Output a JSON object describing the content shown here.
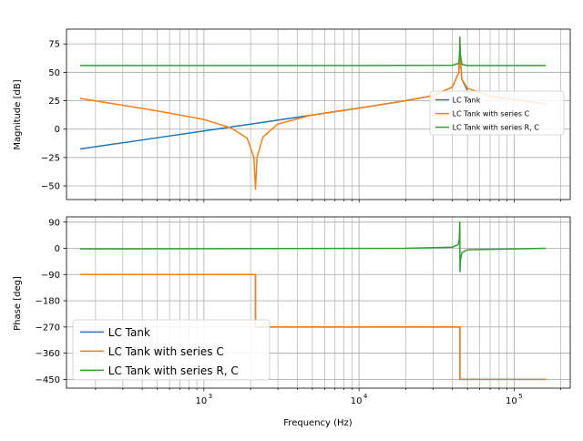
{
  "chart_data": [
    {
      "type": "line",
      "panel": "magnitude",
      "ylabel": "Magnitude [dB]",
      "xscale": "log",
      "xlim": [
        130,
        230000
      ],
      "ylim": [
        -62,
        88
      ],
      "yticks": [
        -50,
        -25,
        0,
        25,
        50,
        75
      ],
      "grid": "both (major and minor)",
      "legend_position": "right",
      "legend_entries": [
        "LC Tank",
        "LC Tank with series C",
        "LC Tank with series R, C"
      ],
      "series": [
        {
          "name": "LC Tank",
          "color": "#1f77b4",
          "x": [
            159,
            500,
            1000,
            2000,
            5000,
            10000,
            20000,
            30000,
            40000,
            44000,
            44700,
            45000,
            46000,
            50000
          ],
          "y": [
            -17.5,
            -7.6,
            -1.6,
            4.4,
            12.4,
            18.5,
            25.0,
            29.4,
            37.0,
            50.0,
            72.0,
            60.0,
            44.0,
            34.0
          ]
        },
        {
          "name": "LC Tank with series C",
          "color": "#ff7f0e",
          "x": [
            159,
            300,
            500,
            800,
            1000,
            1500,
            1900,
            2100,
            2150,
            2200,
            2400,
            3000,
            5000,
            10000,
            20000,
            30000,
            40000,
            44000,
            44700,
            45000,
            46000,
            50000,
            70000,
            100000,
            160000
          ],
          "y": [
            27.0,
            21.0,
            16.0,
            11.0,
            8.5,
            1.0,
            -8.0,
            -25.0,
            -53.0,
            -25.0,
            -7.0,
            4.5,
            12.5,
            18.5,
            25.0,
            29.5,
            37.0,
            50.0,
            72.0,
            60.0,
            44.0,
            36.0,
            29.0,
            26.0,
            22.0
          ]
        },
        {
          "name": "LC Tank with series R, C",
          "color": "#2ca02c",
          "x": [
            159,
            10000,
            40000,
            44000,
            44500,
            44700,
            44900,
            46000,
            50000,
            160000
          ],
          "y": [
            56.0,
            56.0,
            56.2,
            58.0,
            67.0,
            81.0,
            67.0,
            57.0,
            56.0,
            56.0
          ]
        }
      ]
    },
    {
      "type": "line",
      "panel": "phase",
      "xlabel": "Frequency (Hz)",
      "ylabel": "Phase [deg]",
      "xscale": "log",
      "xlim": [
        130,
        230000
      ],
      "ylim": [
        -480,
        108
      ],
      "yticks": [
        90,
        0,
        -90,
        -180,
        -270,
        -360,
        -450
      ],
      "xticks": [
        1000,
        10000,
        100000
      ],
      "xtick_labels": [
        "10",
        "10",
        "10"
      ],
      "xtick_exponents": [
        "3",
        "4",
        "5"
      ],
      "grid": "both (major and minor)",
      "legend_position": "bottom-left",
      "legend_entries": [
        "LC Tank",
        "LC Tank with series C",
        "LC Tank with series R, C"
      ],
      "series": [
        {
          "name": "LC Tank",
          "color": "#1f77b4",
          "x": [
            159,
            2150,
            2150,
            44700,
            44700,
            160000
          ],
          "y": [
            -90,
            -90,
            -270,
            -270,
            -450,
            -450
          ]
        },
        {
          "name": "LC Tank with series C",
          "color": "#ff7f0e",
          "x": [
            159,
            2150,
            2150,
            44700,
            44700,
            160000
          ],
          "y": [
            -90,
            -90,
            -270,
            -270,
            -450,
            -450
          ]
        },
        {
          "name": "LC Tank with series R, C",
          "color": "#2ca02c",
          "x": [
            159,
            20000,
            40000,
            43500,
            44300,
            44650,
            44700,
            44750,
            45100,
            46000,
            50000,
            160000
          ],
          "y": [
            -2,
            0,
            4,
            12,
            30,
            90,
            0,
            -80,
            -40,
            -15,
            -5,
            0
          ]
        }
      ]
    }
  ]
}
